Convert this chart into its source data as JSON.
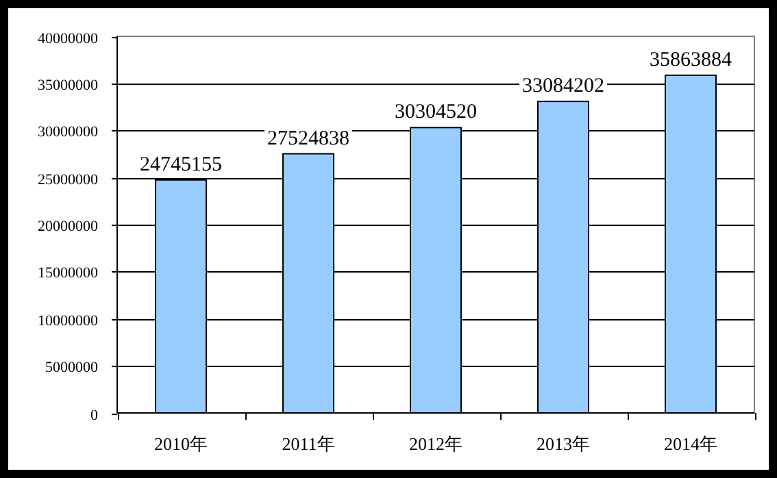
{
  "chart_data": {
    "type": "bar",
    "categories": [
      "2010年",
      "2011年",
      "2012年",
      "2013年",
      "2014年"
    ],
    "values": [
      24745155,
      27524838,
      30304520,
      33084202,
      35863884
    ],
    "color": "#99ccff",
    "ylim": [
      0,
      40000000
    ],
    "yticks": [
      0,
      5000000,
      10000000,
      15000000,
      20000000,
      25000000,
      30000000,
      35000000,
      40000000
    ],
    "grid": "y",
    "data_labels": true
  }
}
